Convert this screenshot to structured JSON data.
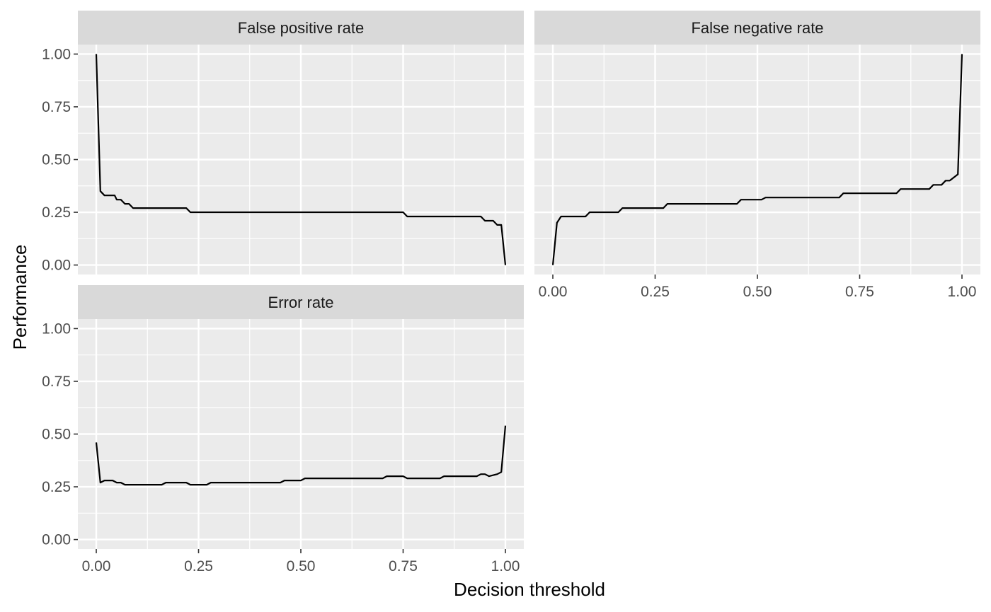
{
  "chart_data": {
    "type": "line",
    "layout": "facet_wrap",
    "xlabel": "Decision threshold",
    "ylabel": "Performance",
    "xlim": [
      0,
      1
    ],
    "ylim": [
      0,
      1
    ],
    "x_ticks": [
      0,
      0.25,
      0.5,
      0.75,
      1
    ],
    "x_tick_labels": [
      "0.00",
      "0.25",
      "0.50",
      "0.75",
      "1.00"
    ],
    "y_ticks": [
      0,
      0.25,
      0.5,
      0.75,
      1
    ],
    "y_tick_labels": [
      "0.00",
      "0.25",
      "0.50",
      "0.75",
      "1.00"
    ],
    "grid": true,
    "line_color": "#000000",
    "panel_background": "#ebebeb",
    "strip_background": "#d9d9d9",
    "panels": [
      {
        "title": "False positive rate",
        "x": [
          0,
          0.01,
          0.02,
          0.045,
          0.05,
          0.06,
          0.065,
          0.07,
          0.08,
          0.09,
          0.22,
          0.23,
          0.75,
          0.76,
          0.94,
          0.95,
          0.97,
          0.98,
          0.99,
          1.0
        ],
        "y": [
          1.0,
          0.35,
          0.33,
          0.33,
          0.31,
          0.31,
          0.3,
          0.29,
          0.29,
          0.27,
          0.27,
          0.25,
          0.25,
          0.23,
          0.23,
          0.21,
          0.21,
          0.19,
          0.19,
          0.0
        ]
      },
      {
        "title": "False negative rate",
        "x": [
          0,
          0.01,
          0.02,
          0.08,
          0.09,
          0.16,
          0.17,
          0.27,
          0.28,
          0.45,
          0.46,
          0.51,
          0.52,
          0.7,
          0.71,
          0.84,
          0.85,
          0.92,
          0.93,
          0.95,
          0.96,
          0.97,
          0.99,
          1.0
        ],
        "y": [
          0.0,
          0.2,
          0.23,
          0.23,
          0.25,
          0.25,
          0.27,
          0.27,
          0.29,
          0.29,
          0.31,
          0.31,
          0.32,
          0.32,
          0.34,
          0.34,
          0.36,
          0.36,
          0.38,
          0.38,
          0.4,
          0.4,
          0.43,
          1.0
        ]
      },
      {
        "title": "Error rate",
        "x": [
          0,
          0.01,
          0.02,
          0.04,
          0.05,
          0.06,
          0.07,
          0.075,
          0.16,
          0.17,
          0.22,
          0.23,
          0.27,
          0.28,
          0.45,
          0.46,
          0.5,
          0.51,
          0.7,
          0.71,
          0.75,
          0.76,
          0.84,
          0.85,
          0.93,
          0.94,
          0.95,
          0.96,
          0.98,
          0.99,
          1.0
        ],
        "y": [
          0.46,
          0.27,
          0.28,
          0.28,
          0.27,
          0.27,
          0.26,
          0.26,
          0.26,
          0.27,
          0.27,
          0.26,
          0.26,
          0.27,
          0.27,
          0.28,
          0.28,
          0.29,
          0.29,
          0.3,
          0.3,
          0.29,
          0.29,
          0.3,
          0.3,
          0.31,
          0.31,
          0.3,
          0.31,
          0.32,
          0.54
        ]
      }
    ]
  }
}
